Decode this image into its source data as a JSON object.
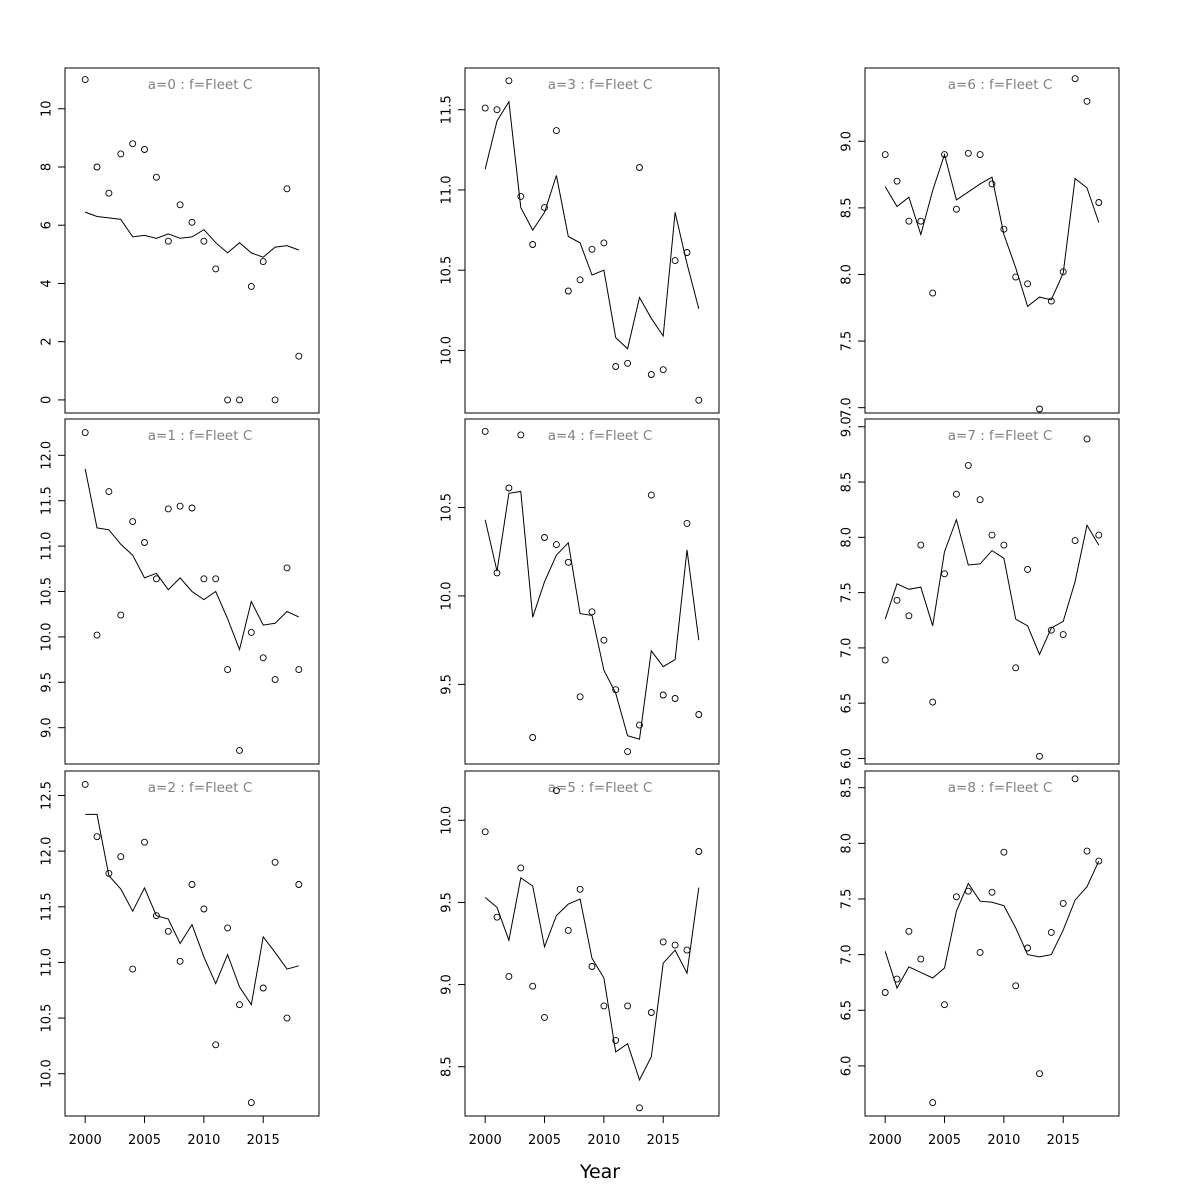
{
  "figure": {
    "xlabel": "Year"
  },
  "chart_data": [
    {
      "type": "scatter",
      "title": "a=0  :  f=Fleet C",
      "x": [
        2000,
        2001,
        2002,
        2003,
        2004,
        2005,
        2006,
        2007,
        2008,
        2009,
        2010,
        2011,
        2012,
        2013,
        2014,
        2015,
        2016,
        2017,
        2018
      ],
      "xlim": [
        1998.3,
        2019.7
      ],
      "ylim": [
        -0.45,
        11.4
      ],
      "yticks": [
        "0",
        "2",
        "4",
        "6",
        "8",
        "10"
      ],
      "xticks": [],
      "series": [
        {
          "kind": "points",
          "values": [
            11.0,
            8.0,
            7.1,
            8.45,
            8.8,
            8.6,
            7.65,
            5.45,
            6.7,
            6.1,
            5.45,
            4.5,
            0.0,
            0.0,
            3.9,
            4.75,
            0.0,
            7.25,
            1.5
          ]
        },
        {
          "kind": "line",
          "values": [
            6.45,
            6.3,
            6.25,
            6.2,
            5.6,
            5.65,
            5.55,
            5.7,
            5.55,
            5.6,
            5.85,
            5.4,
            5.05,
            5.4,
            5.05,
            4.9,
            5.25,
            5.3,
            5.15
          ]
        }
      ]
    },
    {
      "type": "scatter",
      "title": "a=1  :  f=Fleet C",
      "x": [
        2000,
        2001,
        2002,
        2003,
        2004,
        2005,
        2006,
        2007,
        2008,
        2009,
        2010,
        2011,
        2012,
        2013,
        2014,
        2015,
        2016,
        2017,
        2018
      ],
      "xlim": [
        1998.3,
        2019.7
      ],
      "ylim": [
        8.6,
        12.4
      ],
      "yticks": [
        "9.0",
        "9.5",
        "10.0",
        "10.5",
        "11.0",
        "11.5",
        "12.0"
      ],
      "xticks": [],
      "series": [
        {
          "kind": "points",
          "values": [
            12.25,
            10.02,
            11.6,
            10.24,
            11.27,
            11.04,
            10.64,
            11.41,
            11.44,
            11.42,
            10.64,
            10.64,
            9.64,
            8.75,
            10.05,
            9.77,
            9.53,
            10.76,
            9.64
          ]
        },
        {
          "kind": "line",
          "values": [
            11.85,
            11.2,
            11.18,
            11.02,
            10.9,
            10.65,
            10.7,
            10.52,
            10.65,
            10.5,
            10.41,
            10.5,
            10.2,
            9.86,
            10.39,
            10.13,
            10.15,
            10.28,
            10.22
          ]
        }
      ]
    },
    {
      "type": "scatter",
      "title": "a=2  :  f=Fleet C",
      "x": [
        2000,
        2001,
        2002,
        2003,
        2004,
        2005,
        2006,
        2007,
        2008,
        2009,
        2010,
        2011,
        2012,
        2013,
        2014,
        2015,
        2016,
        2017,
        2018
      ],
      "xlim": [
        1998.3,
        2019.7
      ],
      "ylim": [
        9.62,
        12.72
      ],
      "yticks": [
        "10.0",
        "10.5",
        "11.0",
        "11.5",
        "12.0",
        "12.5"
      ],
      "xticks": [
        "2000",
        "2005",
        "2010",
        "2015"
      ],
      "series": [
        {
          "kind": "points",
          "values": [
            12.6,
            12.13,
            11.8,
            11.95,
            10.94,
            12.08,
            11.42,
            11.28,
            11.01,
            11.7,
            11.48,
            10.26,
            11.31,
            10.62,
            9.74,
            10.77,
            11.9,
            10.5,
            11.7
          ]
        },
        {
          "kind": "line",
          "values": [
            12.33,
            12.33,
            11.78,
            11.66,
            11.46,
            11.67,
            11.42,
            11.39,
            11.17,
            11.34,
            11.05,
            10.81,
            11.07,
            10.78,
            10.62,
            11.23,
            11.09,
            10.94,
            10.97
          ]
        }
      ]
    },
    {
      "type": "scatter",
      "title": "a=3  :  f=Fleet C",
      "x": [
        2000,
        2001,
        2002,
        2003,
        2004,
        2005,
        2006,
        2007,
        2008,
        2009,
        2010,
        2011,
        2012,
        2013,
        2014,
        2015,
        2016,
        2017,
        2018
      ],
      "xlim": [
        1998.3,
        2019.7
      ],
      "ylim": [
        9.61,
        11.76
      ],
      "yticks": [
        "10.0",
        "10.5",
        "11.0",
        "11.5"
      ],
      "xticks": [],
      "series": [
        {
          "kind": "points",
          "values": [
            11.51,
            11.5,
            11.68,
            10.96,
            10.66,
            10.89,
            11.37,
            10.37,
            10.44,
            10.63,
            10.67,
            9.9,
            9.92,
            11.14,
            9.85,
            9.88,
            10.56,
            10.61,
            9.69
          ]
        },
        {
          "kind": "line",
          "values": [
            11.13,
            11.43,
            11.55,
            10.89,
            10.75,
            10.86,
            11.09,
            10.71,
            10.67,
            10.47,
            10.5,
            10.08,
            10.01,
            10.33,
            10.2,
            10.09,
            10.86,
            10.54,
            10.26
          ]
        }
      ]
    },
    {
      "type": "scatter",
      "title": "a=4  :  f=Fleet C",
      "x": [
        2000,
        2001,
        2002,
        2003,
        2004,
        2005,
        2006,
        2007,
        2008,
        2009,
        2010,
        2011,
        2012,
        2013,
        2014,
        2015,
        2016,
        2017,
        2018
      ],
      "xlim": [
        1998.3,
        2019.7
      ],
      "ylim": [
        9.05,
        11.0
      ],
      "yticks": [
        "9.5",
        "10.0",
        "10.5"
      ],
      "xticks": [],
      "series": [
        {
          "kind": "points",
          "values": [
            10.93,
            10.13,
            10.61,
            10.91,
            9.2,
            10.33,
            10.29,
            10.19,
            9.43,
            9.91,
            9.75,
            9.47,
            9.12,
            9.27,
            10.57,
            9.44,
            9.42,
            10.41,
            9.33
          ]
        },
        {
          "kind": "line",
          "values": [
            10.43,
            10.14,
            10.58,
            10.59,
            9.88,
            10.08,
            10.23,
            10.3,
            9.9,
            9.89,
            9.58,
            9.45,
            9.21,
            9.19,
            9.69,
            9.6,
            9.64,
            10.26,
            9.75
          ]
        }
      ]
    },
    {
      "type": "scatter",
      "title": "a=5  :  f=Fleet C",
      "x": [
        2000,
        2001,
        2002,
        2003,
        2004,
        2005,
        2006,
        2007,
        2008,
        2009,
        2010,
        2011,
        2012,
        2013,
        2014,
        2015,
        2016,
        2017,
        2018
      ],
      "xlim": [
        1998.3,
        2019.7
      ],
      "ylim": [
        8.2,
        10.3
      ],
      "yticks": [
        "8.5",
        "9.0",
        "9.5",
        "10.0"
      ],
      "xticks": [
        "2000",
        "2005",
        "2010",
        "2015"
      ],
      "series": [
        {
          "kind": "points",
          "values": [
            9.93,
            9.41,
            9.05,
            9.71,
            8.99,
            8.8,
            10.18,
            9.33,
            9.58,
            9.11,
            8.87,
            8.66,
            8.87,
            8.25,
            8.83,
            9.26,
            9.24,
            9.21,
            9.81
          ]
        },
        {
          "kind": "line",
          "values": [
            9.53,
            9.47,
            9.27,
            9.65,
            9.6,
            9.23,
            9.42,
            9.49,
            9.52,
            9.16,
            9.04,
            8.59,
            8.64,
            8.42,
            8.56,
            9.13,
            9.21,
            9.07,
            9.59
          ]
        }
      ]
    },
    {
      "type": "scatter",
      "title": "a=6  :  f=Fleet C",
      "x": [
        2000,
        2001,
        2002,
        2003,
        2004,
        2005,
        2006,
        2007,
        2008,
        2009,
        2010,
        2011,
        2012,
        2013,
        2014,
        2015,
        2016,
        2017,
        2018
      ],
      "xlim": [
        1998.3,
        2019.7
      ],
      "ylim": [
        6.96,
        9.55
      ],
      "yticks": [
        "7.0",
        "7.5",
        "8.0",
        "8.5",
        "9.0"
      ],
      "xticks": [],
      "series": [
        {
          "kind": "points",
          "values": [
            8.9,
            8.7,
            8.4,
            8.4,
            7.86,
            8.9,
            8.49,
            8.91,
            8.9,
            8.68,
            8.34,
            7.98,
            7.93,
            6.99,
            7.8,
            8.02,
            9.47,
            9.3,
            8.54
          ]
        },
        {
          "kind": "line",
          "values": [
            8.66,
            8.51,
            8.58,
            8.3,
            8.63,
            8.9,
            8.56,
            8.62,
            8.68,
            8.73,
            8.3,
            8.05,
            7.76,
            7.83,
            7.81,
            8.01,
            8.72,
            8.65,
            8.39
          ]
        }
      ]
    },
    {
      "type": "scatter",
      "title": "a=7  :  f=Fleet C",
      "x": [
        2000,
        2001,
        2002,
        2003,
        2004,
        2005,
        2006,
        2007,
        2008,
        2009,
        2010,
        2011,
        2012,
        2013,
        2014,
        2015,
        2016,
        2017,
        2018
      ],
      "xlim": [
        1998.3,
        2019.7
      ],
      "ylim": [
        5.95,
        9.07
      ],
      "yticks": [
        "6.0",
        "6.5",
        "7.0",
        "7.5",
        "8.0",
        "8.5",
        "9.0"
      ],
      "xticks": [],
      "series": [
        {
          "kind": "points",
          "values": [
            6.89,
            7.43,
            7.29,
            7.93,
            6.51,
            7.67,
            8.39,
            8.65,
            8.34,
            8.02,
            7.93,
            6.82,
            7.71,
            6.02,
            7.16,
            7.12,
            7.97,
            8.89,
            8.02
          ]
        },
        {
          "kind": "line",
          "values": [
            7.26,
            7.58,
            7.53,
            7.55,
            7.2,
            7.87,
            8.16,
            7.75,
            7.76,
            7.88,
            7.81,
            7.26,
            7.2,
            6.94,
            7.18,
            7.24,
            7.6,
            8.11,
            7.93
          ]
        }
      ]
    },
    {
      "type": "scatter",
      "title": "a=8  :  f=Fleet C",
      "x": [
        2000,
        2001,
        2002,
        2003,
        2004,
        2005,
        2006,
        2007,
        2008,
        2009,
        2010,
        2011,
        2012,
        2013,
        2014,
        2015,
        2016,
        2017,
        2018
      ],
      "xlim": [
        1998.3,
        2019.7
      ],
      "ylim": [
        5.55,
        8.65
      ],
      "yticks": [
        "6.0",
        "6.5",
        "7.0",
        "7.5",
        "8.0",
        "8.5"
      ],
      "xticks": [
        "2000",
        "2005",
        "2010",
        "2015"
      ],
      "series": [
        {
          "kind": "points",
          "values": [
            6.66,
            6.78,
            7.21,
            6.96,
            5.67,
            6.55,
            7.52,
            7.57,
            7.02,
            7.56,
            7.92,
            6.72,
            7.06,
            5.93,
            7.2,
            7.46,
            8.58,
            7.93,
            7.84
          ]
        },
        {
          "kind": "line",
          "values": [
            7.03,
            6.7,
            6.89,
            6.84,
            6.79,
            6.88,
            7.39,
            7.64,
            7.48,
            7.47,
            7.44,
            7.24,
            7.0,
            6.98,
            7.0,
            7.22,
            7.49,
            7.61,
            7.84
          ]
        }
      ]
    }
  ]
}
